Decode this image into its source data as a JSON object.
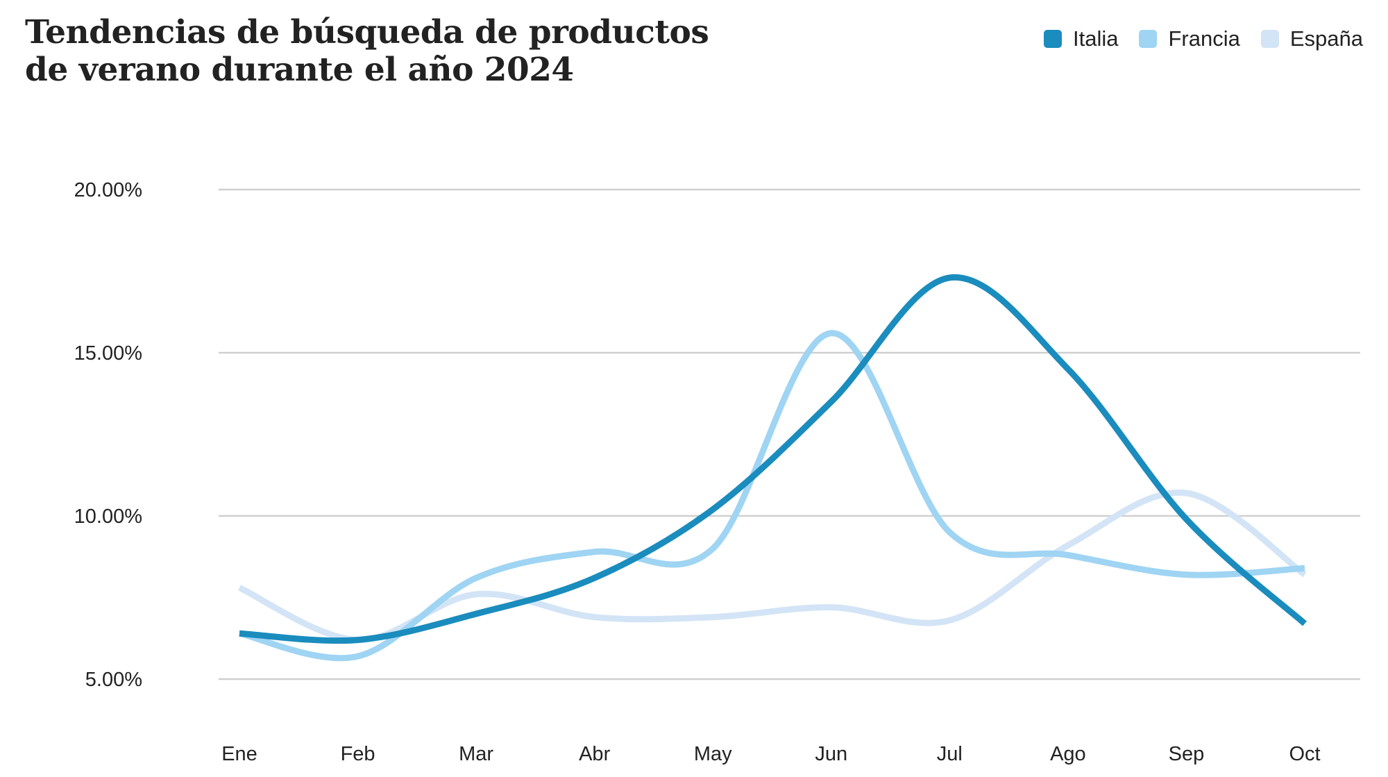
{
  "chart_data": {
    "type": "line",
    "title_lines": [
      "Tendencias de búsqueda de productos",
      "de verano durante el año 2024"
    ],
    "categories": [
      "Ene",
      "Feb",
      "Mar",
      "Abr",
      "May",
      "Jun",
      "Jul",
      "Ago",
      "Sep",
      "Oct"
    ],
    "y_ticks": [
      "5.00%",
      "10.00%",
      "15.00%",
      "20.00%"
    ],
    "ylim": [
      5,
      20
    ],
    "grid": true,
    "legend_position": "top-right",
    "series": [
      {
        "name": "Italia",
        "color": "#1a8cbd",
        "values": [
          6.4,
          6.2,
          7.0,
          8.1,
          10.2,
          13.5,
          17.3,
          14.5,
          9.9,
          6.7
        ]
      },
      {
        "name": "Francia",
        "color": "#9fd4f3",
        "values": [
          6.4,
          5.7,
          8.1,
          8.9,
          9.0,
          15.6,
          9.5,
          8.8,
          8.2,
          8.4
        ]
      },
      {
        "name": "España",
        "color": "#d3e4f6",
        "values": [
          7.8,
          6.2,
          7.6,
          6.9,
          6.9,
          7.2,
          6.8,
          9.1,
          10.7,
          8.2
        ]
      }
    ]
  }
}
